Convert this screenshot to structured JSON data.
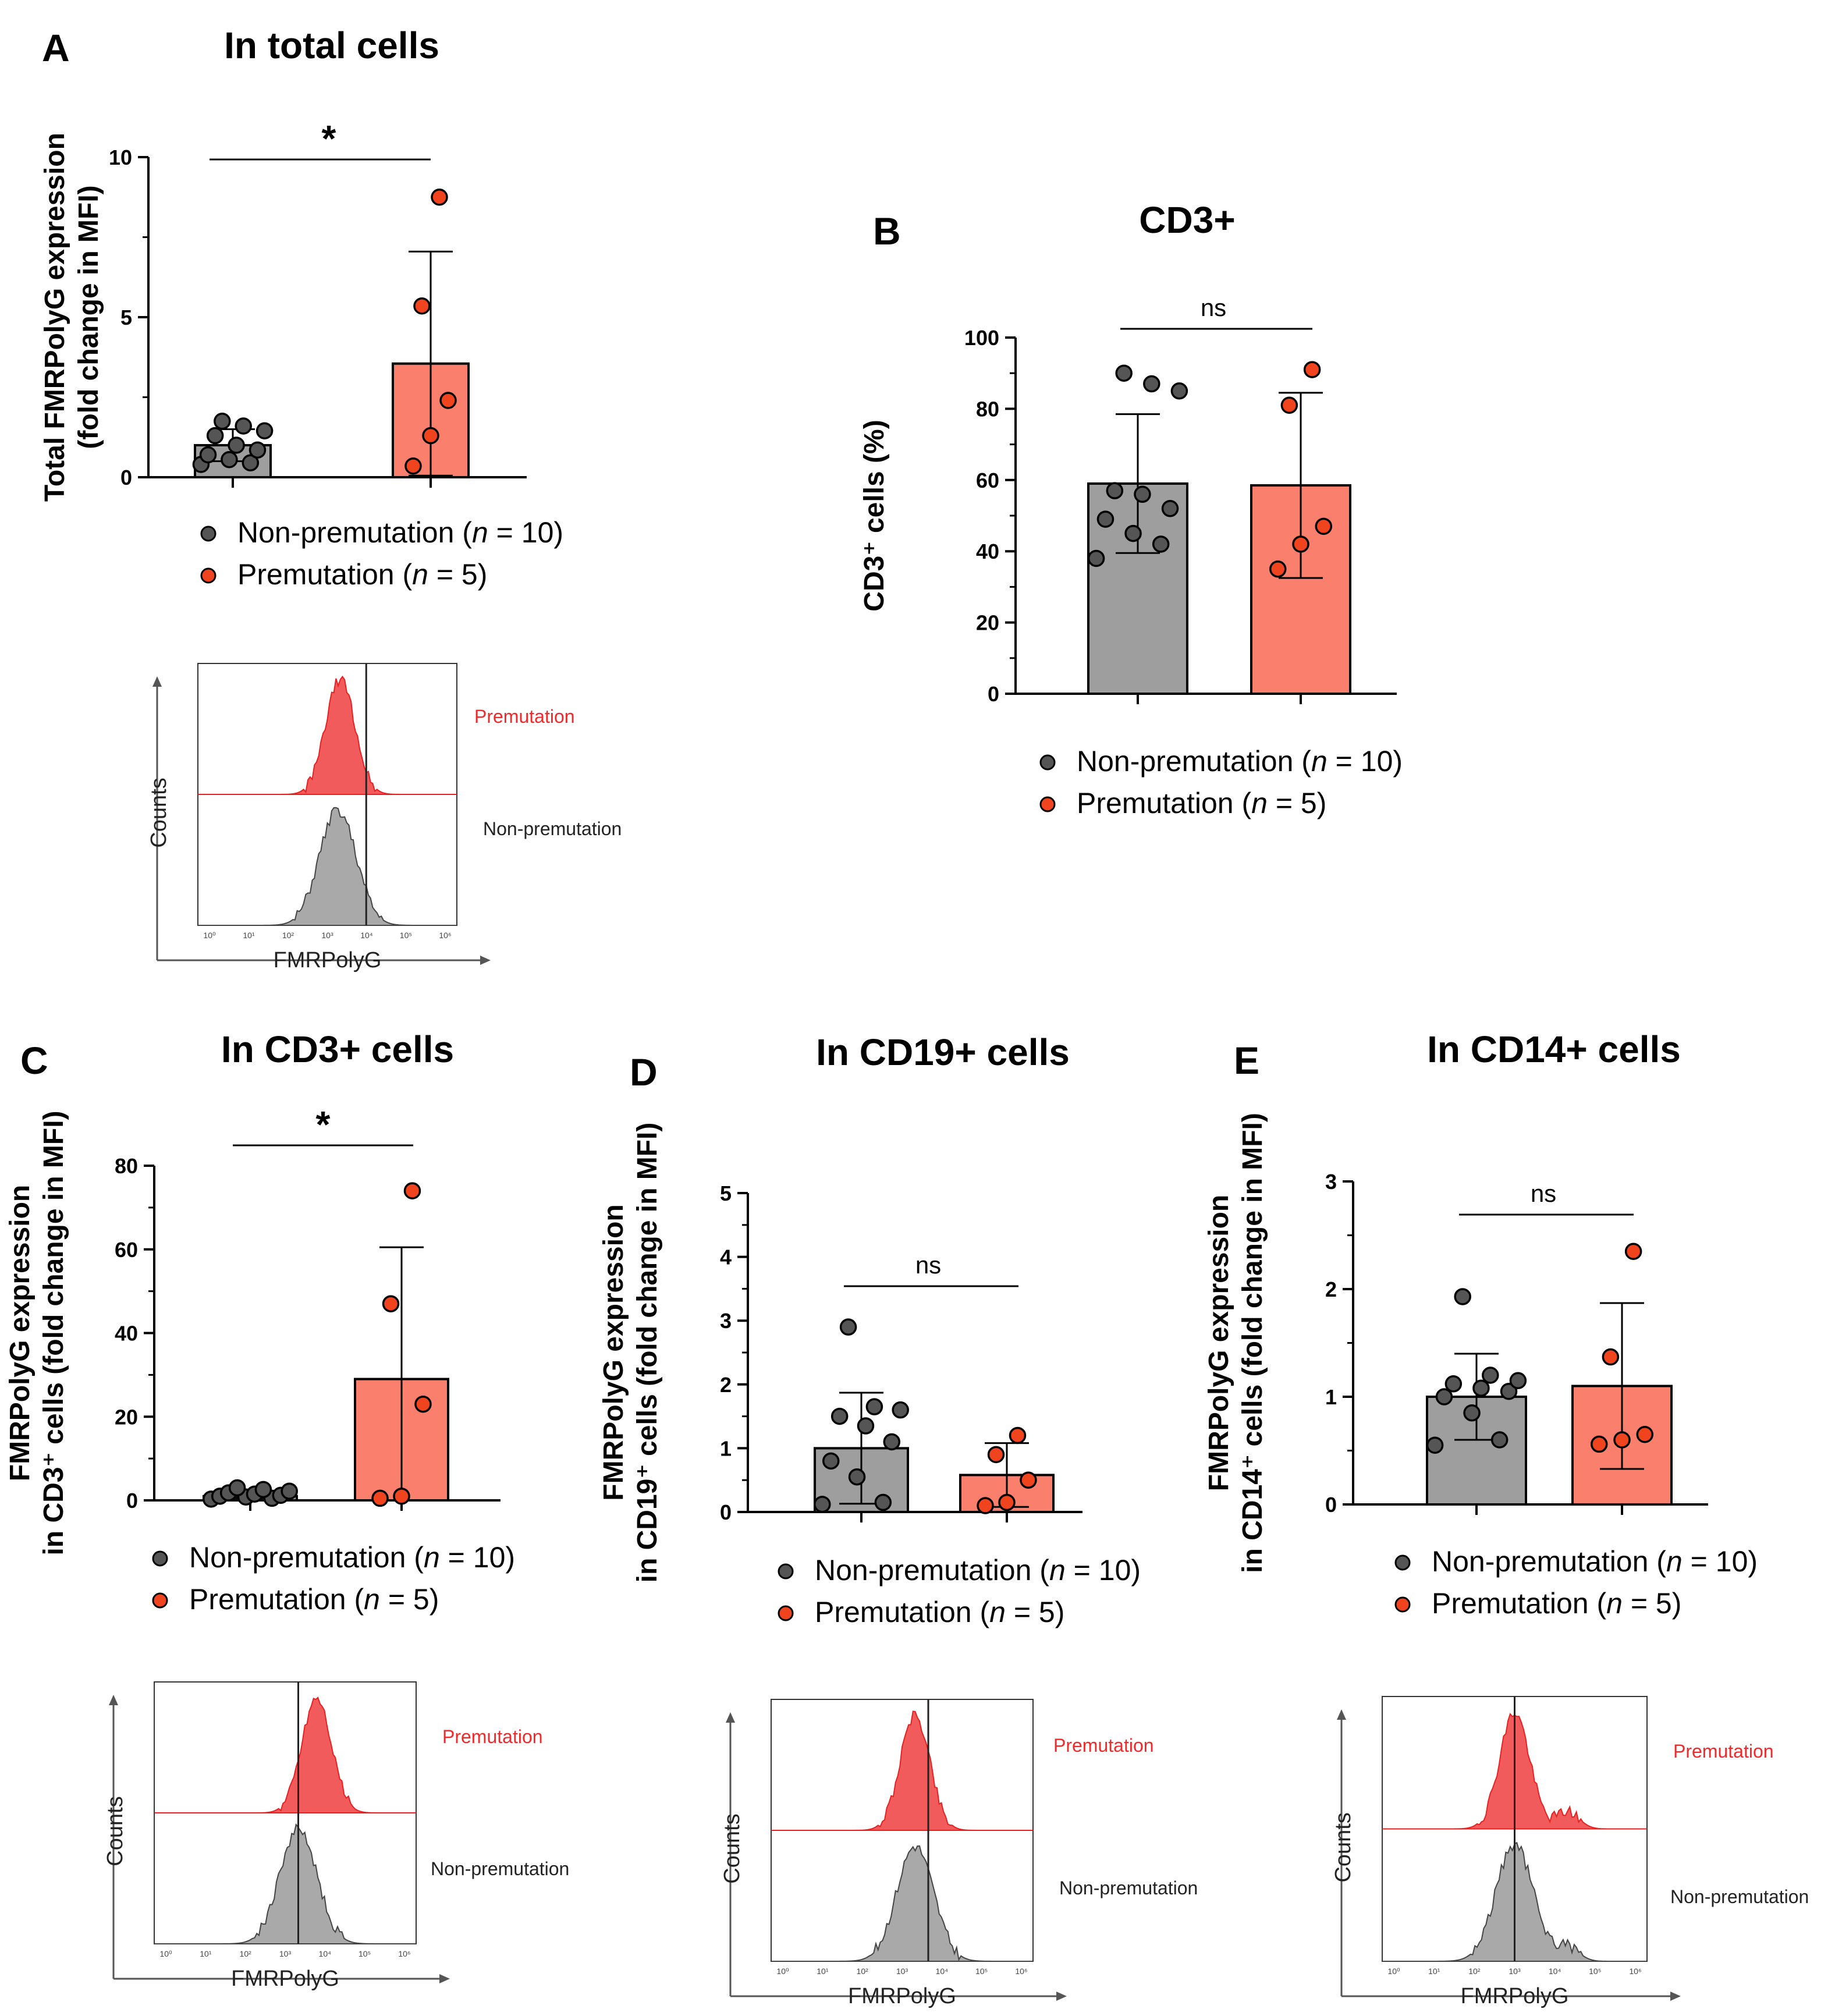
{
  "colors": {
    "non_premutation_bar": "#9e9e9e",
    "premutation_bar": "#fa7f6c",
    "non_premutation_dot": "#555555",
    "premutation_dot": "#f0441f",
    "hist_red": "#f25b5b",
    "hist_grey": "#a9a9a9"
  },
  "legend": {
    "non_premutation": "Non-premutation (",
    "premutation": "Premutation (",
    "n_italic": "n",
    "non_premutation_count": " = 10)",
    "premutation_count": " = 5)"
  },
  "histograms": {
    "premutation_label": "Premutation",
    "non_premutation_label": "Non-premutation",
    "y_axis": "Counts",
    "x_axis": "FMRPolyG"
  },
  "chart_data": [
    {
      "id": "A",
      "type": "bar",
      "panel_letter": "A",
      "title": "In total cells",
      "ylabel_lines": [
        "Total FMRPolyG expression",
        "(fold change in MFI)"
      ],
      "categories": [
        "Non-premutation",
        "Premutation"
      ],
      "values": [
        1.0,
        3.55
      ],
      "errors": [
        0.5,
        3.5
      ],
      "ylim": [
        0,
        10
      ],
      "yticks": [
        0,
        5,
        10
      ],
      "ytick_labels": [
        "0",
        "5",
        "10"
      ],
      "points": [
        [
          0.4,
          0.45,
          0.55,
          0.7,
          0.85,
          1.0,
          1.3,
          1.45,
          1.6,
          1.75
        ],
        [
          0.35,
          1.3,
          2.4,
          5.35,
          8.75
        ]
      ],
      "significance": "*"
    },
    {
      "id": "B",
      "type": "bar",
      "panel_letter": "B",
      "title": "CD3+",
      "ylabel_lines": [
        "CD3⁺ cells (%)"
      ],
      "categories": [
        "Non-premutation",
        "Premutation"
      ],
      "values": [
        59,
        58.5
      ],
      "errors": [
        19.5,
        26
      ],
      "ylim": [
        0,
        100
      ],
      "yticks": [
        0,
        20,
        40,
        60,
        80,
        100
      ],
      "ytick_labels": [
        "0",
        "20",
        "40",
        "60",
        "80",
        "100"
      ],
      "points": [
        [
          38,
          42,
          45,
          49,
          52,
          56,
          57,
          85,
          87,
          90
        ],
        [
          35,
          42,
          47,
          81,
          91
        ]
      ],
      "significance": "ns"
    },
    {
      "id": "C",
      "type": "bar",
      "panel_letter": "C",
      "title": "In CD3+ cells",
      "ylabel_lines": [
        "FMRPolyG expression",
        "in CD3⁺ cells (fold change in MFI)"
      ],
      "categories": [
        "Non-premutation",
        "Premutation"
      ],
      "values": [
        1.0,
        29
      ],
      "errors": [
        0.5,
        31.5
      ],
      "ylim": [
        0,
        80
      ],
      "yticks": [
        0,
        20,
        40,
        60,
        80
      ],
      "ytick_labels": [
        "0",
        "20",
        "40",
        "60",
        "80"
      ],
      "points": [
        [
          0.3,
          0.5,
          0.8,
          1.0,
          1.2,
          1.5,
          1.8,
          2.2,
          2.6,
          3.0
        ],
        [
          0.5,
          1.0,
          23,
          47,
          74
        ]
      ],
      "significance": "*"
    },
    {
      "id": "D",
      "type": "bar",
      "panel_letter": "D",
      "title": "In CD19+ cells",
      "ylabel_lines": [
        "FMRPolyG expression",
        "in CD19⁺ cells (fold change in MFI)"
      ],
      "categories": [
        "Non-premutation",
        "Premutation"
      ],
      "values": [
        1.0,
        0.58
      ],
      "errors": [
        0.87,
        0.5
      ],
      "ylim": [
        0,
        5
      ],
      "yticks": [
        0,
        1,
        2,
        3,
        4,
        5
      ],
      "ytick_labels": [
        "0",
        "1",
        "2",
        "3",
        "4",
        "5"
      ],
      "points": [
        [
          0.12,
          0.15,
          0.55,
          0.8,
          1.1,
          1.35,
          1.5,
          1.6,
          1.65,
          2.9
        ],
        [
          0.1,
          0.15,
          0.5,
          0.9,
          1.2
        ]
      ],
      "significance": "ns"
    },
    {
      "id": "E",
      "type": "bar",
      "panel_letter": "E",
      "title": "In CD14+ cells",
      "ylabel_lines": [
        "FMRPolyG expression",
        "in CD14⁺ cells (fold change in MFI)"
      ],
      "categories": [
        "Non-premutation",
        "Premutation"
      ],
      "values": [
        1.0,
        1.1
      ],
      "errors": [
        0.4,
        0.77
      ],
      "ylim": [
        0,
        3
      ],
      "yticks": [
        0,
        1,
        2,
        3
      ],
      "ytick_labels": [
        "0",
        "1",
        "2",
        "3"
      ],
      "points": [
        [
          0.55,
          0.6,
          0.85,
          1.0,
          1.05,
          1.08,
          1.12,
          1.15,
          1.2,
          1.93
        ],
        [
          0.56,
          0.6,
          0.65,
          1.37,
          2.35
        ]
      ],
      "significance": "ns"
    }
  ]
}
